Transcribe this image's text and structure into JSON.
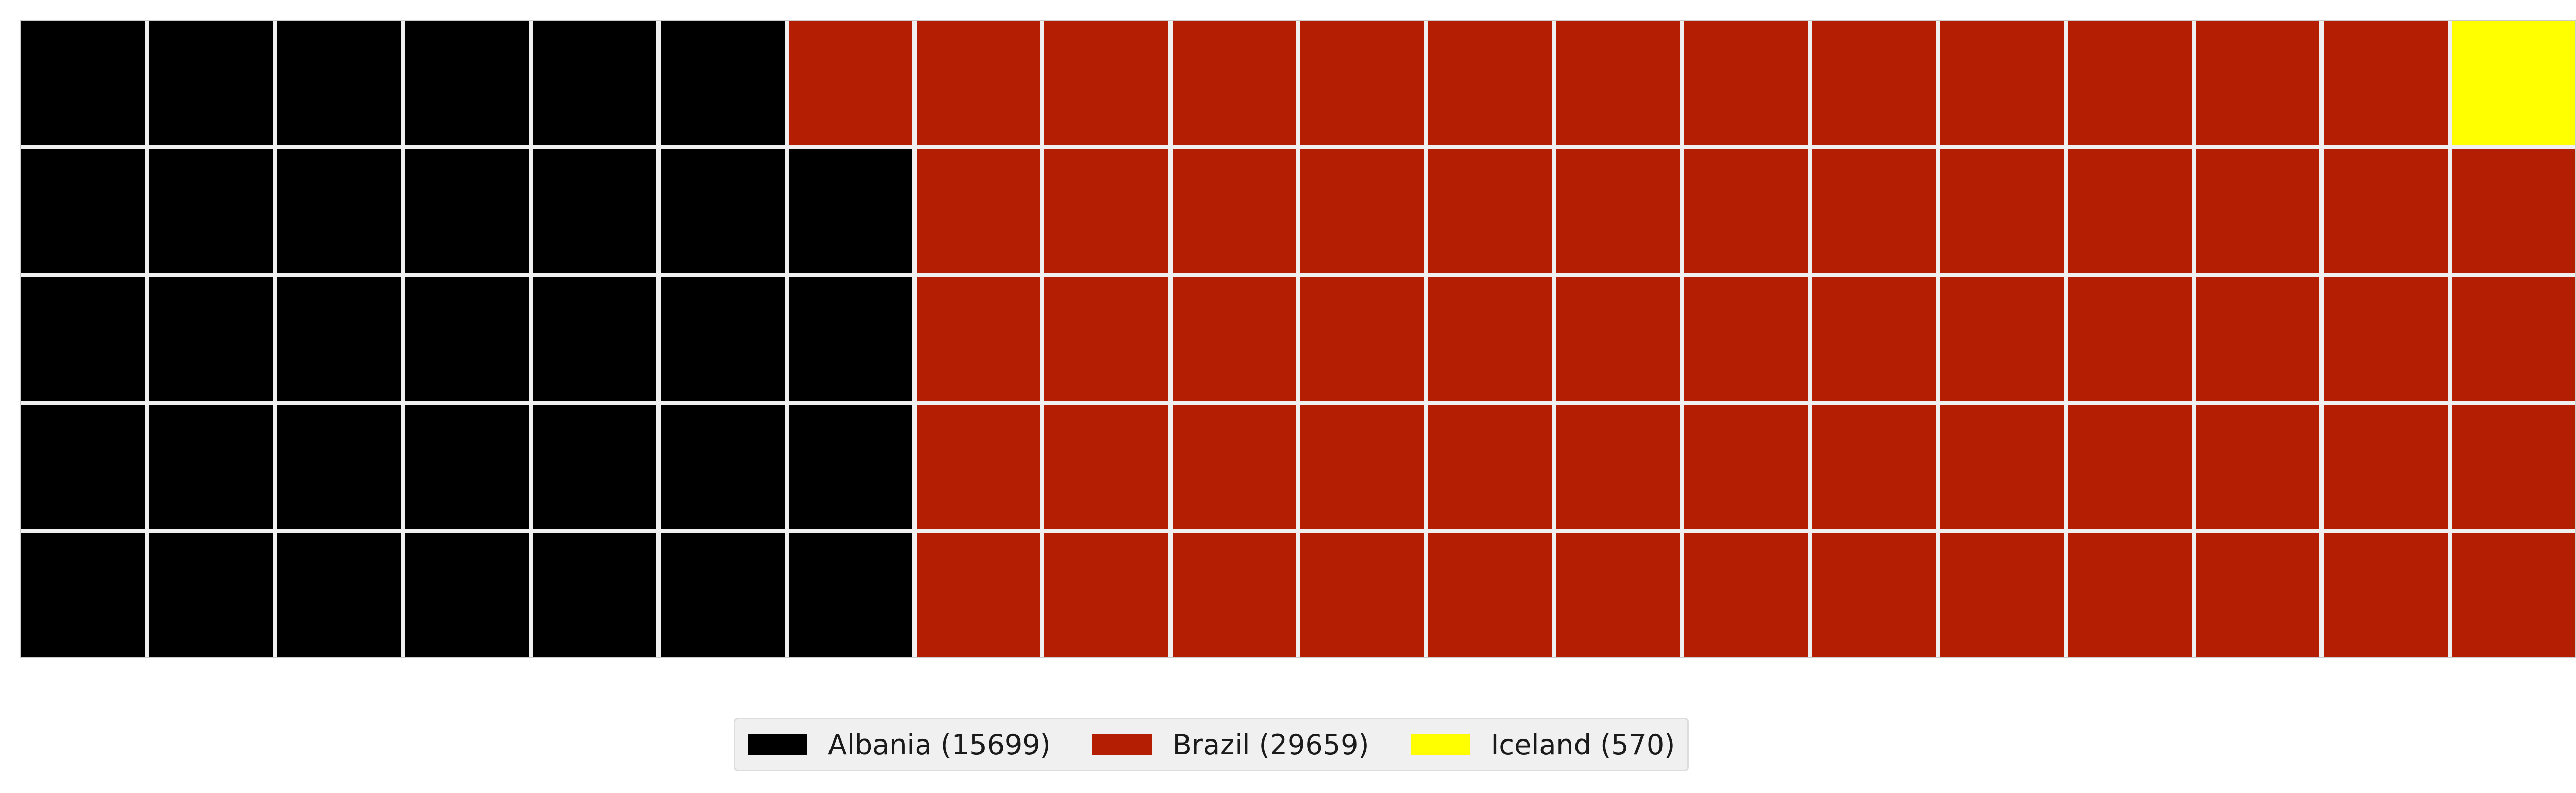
{
  "chart_data": {
    "type": "waffle",
    "rows": 5,
    "columns": 20,
    "series": [
      {
        "name": "Albania",
        "value": 15699,
        "color": "#000000",
        "squares": 34
      },
      {
        "name": "Brazil",
        "value": 29659,
        "color": "#b41f03",
        "squares": 65
      },
      {
        "name": "Iceland",
        "value": 570,
        "color": "#ffff00",
        "squares": 1
      }
    ],
    "legend": {
      "position": "bottom-center",
      "entries": [
        {
          "label": "Albania (15699)",
          "color": "#000000"
        },
        {
          "label": "Brazil (29659)",
          "color": "#b41f03"
        },
        {
          "label": "Iceland (570)",
          "color": "#ffff00"
        }
      ]
    }
  }
}
